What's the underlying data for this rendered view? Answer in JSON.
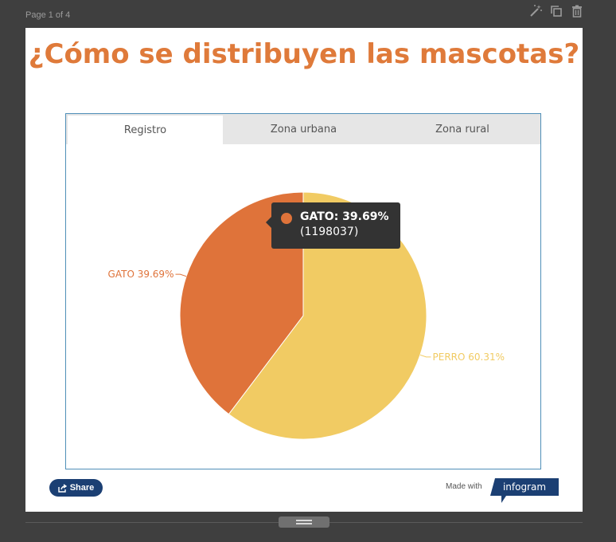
{
  "page_indicator": "Page 1 of 4",
  "toolbar": {
    "icons": [
      "magic-wand-icon",
      "duplicate-icon",
      "trash-icon"
    ]
  },
  "title": "¿Cómo se distribuyen las mascotas?",
  "tabs": [
    {
      "label": "Registro",
      "active": true
    },
    {
      "label": "Zona urbana",
      "active": false
    },
    {
      "label": "Zona rural",
      "active": false
    }
  ],
  "tooltip": {
    "label": "GATO: 39.69%",
    "value": "(1198037)"
  },
  "chart_data": {
    "type": "pie",
    "categories": [
      "GATO",
      "PERRO"
    ],
    "values": [
      39.69,
      60.31
    ],
    "labels": [
      "GATO 39.69%",
      "PERRO 60.31%"
    ],
    "colors": [
      "#df733a",
      "#f1cb63"
    ],
    "title": "¿Cómo se distribuyen las mascotas?"
  },
  "footer": {
    "share_label": "Share",
    "made_with": "Made with",
    "brand": "infogram",
    "brand_color": "#1b3f73"
  }
}
